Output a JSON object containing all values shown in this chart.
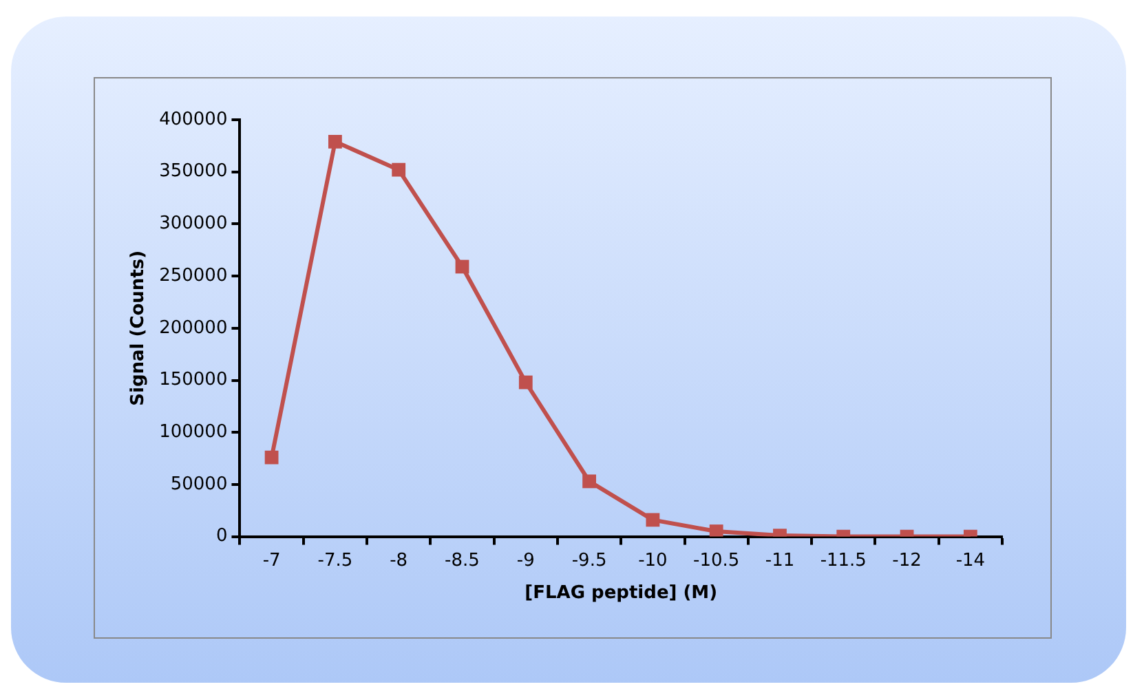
{
  "chart_data": {
    "type": "line",
    "xlabel": "[FLAG peptide] (M)",
    "ylabel": "Signal (Counts)",
    "categories": [
      "-7",
      "-7.5",
      "-8",
      "-8.5",
      "-9",
      "-9.5",
      "-10",
      "-10.5",
      "-11",
      "-11.5",
      "-12",
      "-14"
    ],
    "series": [
      {
        "color": "#c0504d",
        "values": [
          76000,
          379000,
          352000,
          259000,
          148000,
          53000,
          16000,
          5000,
          1000,
          0,
          0,
          0
        ]
      }
    ],
    "ylim": [
      0,
      400000
    ],
    "yticks": [
      0,
      50000,
      100000,
      150000,
      200000,
      250000,
      300000,
      350000,
      400000
    ],
    "grid": false,
    "legend": false,
    "marker": "square",
    "line_style": "solid"
  }
}
